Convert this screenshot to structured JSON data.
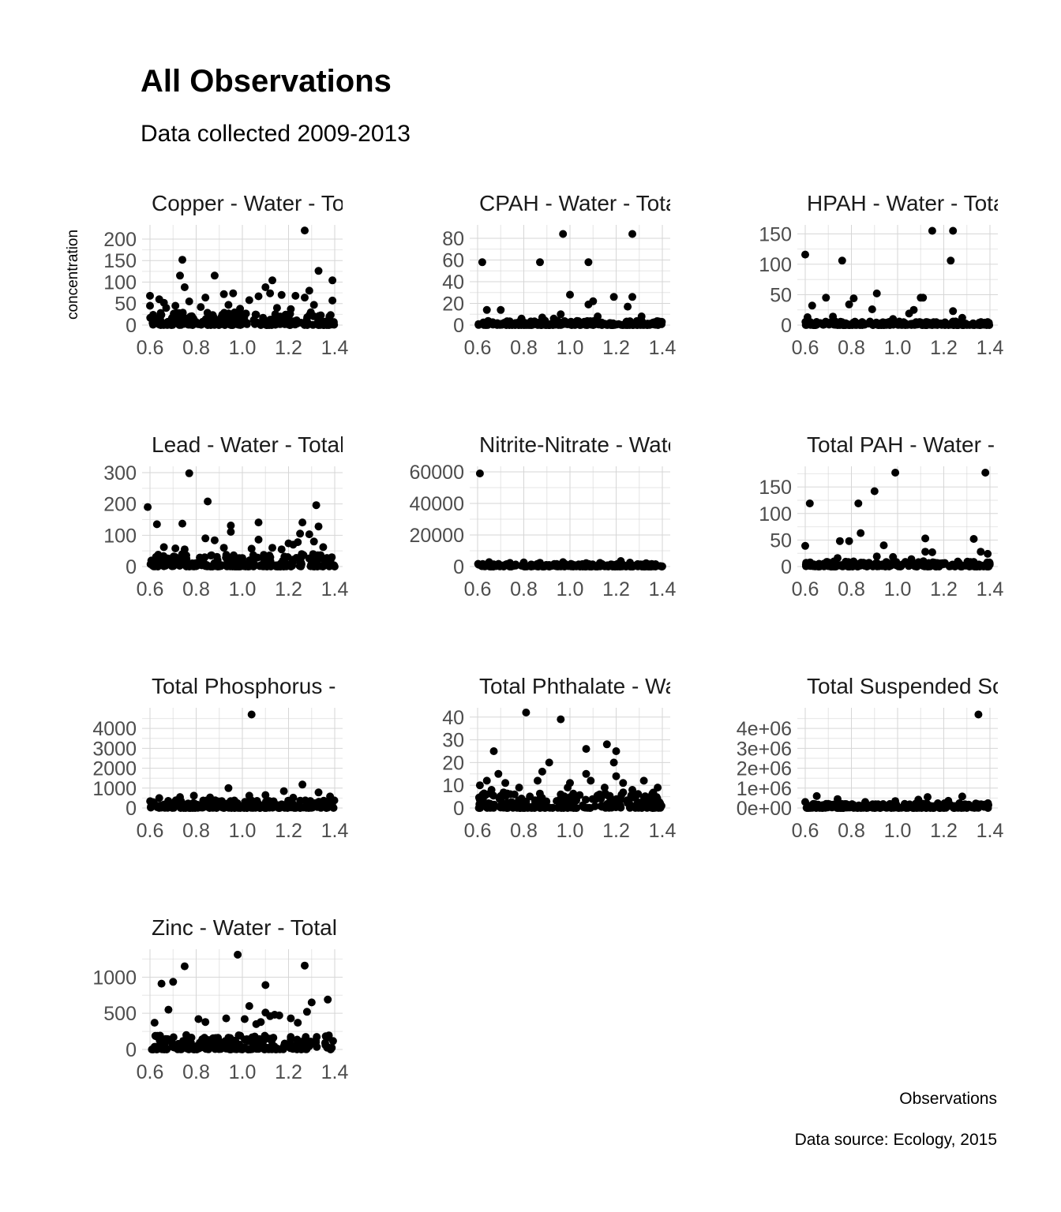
{
  "chart_data": {
    "type": "scatter",
    "title": "All Observations",
    "subtitle": "Data collected 2009-2013",
    "ylabel": "concentration",
    "xlabel": "Observations",
    "caption": "Data source: Ecology, 2015",
    "xlim": [
      0.6,
      1.4
    ],
    "x_ticks": [
      "0.6",
      "0.8",
      "1.0",
      "1.2",
      "1.4"
    ],
    "facets": [
      {
        "strip": "Copper - Water - Tot",
        "ylim": [
          0,
          222
        ],
        "y_ticks": [
          {
            "v": 0,
            "label": "0"
          },
          {
            "v": 50,
            "label": "50"
          },
          {
            "v": 100,
            "label": "100"
          },
          {
            "v": 150,
            "label": "150"
          },
          {
            "v": 200,
            "label": "200"
          }
        ],
        "noise_max": 30,
        "points": [
          [
            1.27,
            220
          ],
          [
            0.74,
            152
          ],
          [
            1.33,
            126
          ],
          [
            0.73,
            115
          ],
          [
            0.88,
            115
          ],
          [
            1.13,
            104
          ],
          [
            1.39,
            104
          ],
          [
            1.1,
            88
          ],
          [
            0.75,
            88
          ],
          [
            1.29,
            80
          ],
          [
            1.12,
            74
          ],
          [
            0.96,
            74
          ],
          [
            0.92,
            72
          ],
          [
            1.17,
            70
          ],
          [
            0.6,
            68
          ],
          [
            1.23,
            68
          ],
          [
            1.07,
            67
          ],
          [
            0.84,
            64
          ],
          [
            1.27,
            64
          ],
          [
            0.64,
            60
          ],
          [
            1.03,
            58
          ],
          [
            1.39,
            57
          ],
          [
            0.77,
            55
          ],
          [
            0.66,
            52
          ],
          [
            0.94,
            47
          ],
          [
            1.31,
            47
          ],
          [
            0.6,
            45
          ],
          [
            0.71,
            45
          ],
          [
            0.82,
            42
          ],
          [
            1.15,
            40
          ],
          [
            0.67,
            40
          ],
          [
            0.99,
            38
          ],
          [
            1.21,
            37
          ]
        ]
      },
      {
        "strip": "CPAH - Water - Tota",
        "ylim": [
          0,
          88
        ],
        "y_ticks": [
          {
            "v": 0,
            "label": "0"
          },
          {
            "v": 20,
            "label": "20"
          },
          {
            "v": 40,
            "label": "40"
          },
          {
            "v": 60,
            "label": "60"
          },
          {
            "v": 80,
            "label": "80"
          }
        ],
        "noise_max": 4,
        "points": [
          [
            0.97,
            84
          ],
          [
            1.27,
            84
          ],
          [
            0.62,
            58
          ],
          [
            0.87,
            58
          ],
          [
            1.08,
            58
          ],
          [
            1.0,
            28
          ],
          [
            1.27,
            26
          ],
          [
            1.19,
            26
          ],
          [
            1.1,
            22
          ],
          [
            1.08,
            19
          ],
          [
            1.25,
            17
          ],
          [
            0.64,
            14
          ],
          [
            0.7,
            14
          ],
          [
            0.96,
            10
          ],
          [
            1.12,
            8
          ],
          [
            1.31,
            8
          ],
          [
            0.88,
            7
          ],
          [
            0.79,
            6
          ],
          [
            0.93,
            6
          ]
        ]
      },
      {
        "strip": "HPAH - Water - Tota",
        "ylim": [
          0,
          157
        ],
        "y_ticks": [
          {
            "v": 0,
            "label": "0"
          },
          {
            "v": 50,
            "label": "50"
          },
          {
            "v": 100,
            "label": "100"
          },
          {
            "v": 150,
            "label": "150"
          }
        ],
        "noise_max": 6,
        "points": [
          [
            1.15,
            155
          ],
          [
            1.24,
            155
          ],
          [
            0.6,
            116
          ],
          [
            0.76,
            106
          ],
          [
            1.23,
            106
          ],
          [
            0.91,
            52
          ],
          [
            0.69,
            45
          ],
          [
            0.81,
            44
          ],
          [
            1.11,
            45
          ],
          [
            1.1,
            45
          ],
          [
            0.79,
            34
          ],
          [
            0.63,
            32
          ],
          [
            0.89,
            26
          ],
          [
            1.07,
            25
          ],
          [
            1.24,
            23
          ],
          [
            1.05,
            19
          ],
          [
            0.72,
            14
          ],
          [
            0.61,
            13
          ],
          [
            1.28,
            12
          ],
          [
            0.98,
            10
          ]
        ]
      },
      {
        "strip": "Lead - Water - Total",
        "ylim": [
          0,
          305
        ],
        "y_ticks": [
          {
            "v": 0,
            "label": "0"
          },
          {
            "v": 100,
            "label": "100"
          },
          {
            "v": 200,
            "label": "200"
          },
          {
            "v": 300,
            "label": "300"
          }
        ],
        "noise_max": 40,
        "points": [
          [
            0.77,
            298
          ],
          [
            0.85,
            208
          ],
          [
            1.32,
            196
          ],
          [
            0.59,
            190
          ],
          [
            1.26,
            141
          ],
          [
            0.63,
            135
          ],
          [
            0.74,
            137
          ],
          [
            1.07,
            141
          ],
          [
            0.95,
            131
          ],
          [
            1.33,
            128
          ],
          [
            0.95,
            111
          ],
          [
            1.25,
            105
          ],
          [
            1.29,
            103
          ],
          [
            0.84,
            90
          ],
          [
            1.07,
            86
          ],
          [
            0.88,
            84
          ],
          [
            1.31,
            80
          ],
          [
            1.2,
            74
          ],
          [
            1.24,
            78
          ],
          [
            1.22,
            70
          ],
          [
            0.66,
            62
          ],
          [
            1.35,
            62
          ],
          [
            0.92,
            60
          ],
          [
            1.04,
            57
          ],
          [
            1.13,
            60
          ],
          [
            0.71,
            58
          ],
          [
            0.75,
            55
          ],
          [
            1.17,
            55
          ]
        ]
      },
      {
        "strip": "Nitrite-Nitrate - Wate",
        "ylim": [
          0,
          60500
        ],
        "y_ticks": [
          {
            "v": 0,
            "label": "0"
          },
          {
            "v": 20000,
            "label": "20000"
          },
          {
            "v": 40000,
            "label": "40000"
          },
          {
            "v": 60000,
            "label": "60000"
          }
        ],
        "noise_max": 1800,
        "points": [
          [
            0.61,
            59000
          ],
          [
            1.22,
            3500
          ],
          [
            0.65,
            2800
          ],
          [
            0.97,
            2800
          ],
          [
            0.8,
            2600
          ],
          [
            1.26,
            2500
          ],
          [
            0.87,
            2400
          ],
          [
            1.13,
            2300
          ],
          [
            0.74,
            2300
          ],
          [
            1.07,
            2200
          ],
          [
            1.33,
            2100
          ]
        ]
      },
      {
        "strip": "Total PAH - Water -",
        "ylim": [
          0,
          180
        ],
        "y_ticks": [
          {
            "v": 0,
            "label": "0"
          },
          {
            "v": 50,
            "label": "50"
          },
          {
            "v": 100,
            "label": "100"
          },
          {
            "v": 150,
            "label": "150"
          }
        ],
        "noise_max": 10,
        "points": [
          [
            0.99,
            177
          ],
          [
            1.38,
            177
          ],
          [
            0.9,
            142
          ],
          [
            0.62,
            119
          ],
          [
            0.83,
            119
          ],
          [
            0.84,
            63
          ],
          [
            1.12,
            53
          ],
          [
            1.33,
            52
          ],
          [
            0.75,
            48
          ],
          [
            0.79,
            48
          ],
          [
            0.6,
            39
          ],
          [
            0.94,
            40
          ],
          [
            1.36,
            28
          ],
          [
            1.15,
            27
          ],
          [
            1.39,
            24
          ],
          [
            1.12,
            28
          ],
          [
            0.98,
            18
          ],
          [
            0.74,
            16
          ],
          [
            0.91,
            19
          ],
          [
            1.06,
            14
          ]
        ]
      },
      {
        "strip": "Total Phosphorus -",
        "ylim": [
          0,
          4800
        ],
        "y_ticks": [
          {
            "v": 0,
            "label": "0"
          },
          {
            "v": 1000,
            "label": "1000"
          },
          {
            "v": 2000,
            "label": "2000"
          },
          {
            "v": 3000,
            "label": "3000"
          },
          {
            "v": 4000,
            "label": "4000"
          }
        ],
        "noise_max": 400,
        "points": [
          [
            1.04,
            4700
          ],
          [
            1.26,
            1180
          ],
          [
            0.94,
            1000
          ],
          [
            1.18,
            850
          ],
          [
            1.33,
            780
          ],
          [
            1.1,
            650
          ],
          [
            0.79,
            620
          ],
          [
            1.03,
            620
          ],
          [
            1.38,
            580
          ],
          [
            0.73,
            550
          ],
          [
            0.86,
            530
          ],
          [
            0.64,
            500
          ],
          [
            1.22,
            520
          ]
        ]
      },
      {
        "strip": "Total Phthalate - Wa",
        "ylim": [
          0,
          42
        ],
        "y_ticks": [
          {
            "v": 0,
            "label": "0"
          },
          {
            "v": 10,
            "label": "10"
          },
          {
            "v": 20,
            "label": "20"
          },
          {
            "v": 30,
            "label": "30"
          },
          {
            "v": 40,
            "label": "40"
          }
        ],
        "noise_max": 7,
        "points": [
          [
            0.81,
            42
          ],
          [
            0.96,
            39
          ],
          [
            1.16,
            28
          ],
          [
            1.07,
            26
          ],
          [
            1.2,
            25
          ],
          [
            0.67,
            25
          ],
          [
            0.91,
            20
          ],
          [
            1.19,
            20
          ],
          [
            0.88,
            16
          ],
          [
            0.69,
            15
          ],
          [
            1.07,
            15
          ],
          [
            1.2,
            14
          ],
          [
            1.32,
            12
          ],
          [
            0.86,
            12
          ],
          [
            0.64,
            12
          ],
          [
            1.0,
            11
          ],
          [
            0.72,
            11
          ],
          [
            1.09,
            12
          ],
          [
            1.23,
            11
          ],
          [
            0.61,
            10
          ],
          [
            0.78,
            9
          ],
          [
            1.27,
            8
          ],
          [
            1.38,
            9
          ],
          [
            0.66,
            8
          ],
          [
            1.15,
            9
          ],
          [
            0.99,
            9
          ]
        ]
      },
      {
        "strip": "Total Suspended Sc",
        "ylim": [
          0,
          4800000
        ],
        "y_ticks": [
          {
            "v": 0,
            "label": "0e+00"
          },
          {
            "v": 1000000,
            "label": "1e+06"
          },
          {
            "v": 2000000,
            "label": "2e+06"
          },
          {
            "v": 3000000,
            "label": "3e+06"
          },
          {
            "v": 4000000,
            "label": "4e+06"
          }
        ],
        "noise_max": 250000,
        "points": [
          [
            1.35,
            4700000
          ],
          [
            0.65,
            600000
          ],
          [
            1.28,
            580000
          ],
          [
            1.13,
            550000
          ],
          [
            0.74,
            450000
          ],
          [
            1.09,
            420000
          ],
          [
            0.99,
            350000
          ],
          [
            1.22,
            360000
          ],
          [
            0.86,
            300000
          ],
          [
            0.6,
            300000
          ]
        ]
      },
      {
        "strip": "Zinc - Water - Total",
        "ylim": [
          0,
          1320
        ],
        "y_ticks": [
          {
            "v": 0,
            "label": "0"
          },
          {
            "v": 500,
            "label": "500"
          },
          {
            "v": 1000,
            "label": "1000"
          }
        ],
        "noise_max": 200,
        "points": [
          [
            0.98,
            1310
          ],
          [
            0.75,
            1150
          ],
          [
            1.27,
            1160
          ],
          [
            0.7,
            935
          ],
          [
            0.65,
            910
          ],
          [
            1.1,
            890
          ],
          [
            1.37,
            690
          ],
          [
            1.3,
            650
          ],
          [
            1.03,
            600
          ],
          [
            0.68,
            550
          ],
          [
            1.28,
            520
          ],
          [
            1.1,
            510
          ],
          [
            1.14,
            480
          ],
          [
            1.16,
            470
          ],
          [
            1.12,
            460
          ],
          [
            0.93,
            430
          ],
          [
            1.21,
            430
          ],
          [
            0.81,
            420
          ],
          [
            1.01,
            420
          ],
          [
            0.84,
            380
          ],
          [
            1.08,
            380
          ],
          [
            1.24,
            370
          ],
          [
            0.62,
            370
          ],
          [
            1.06,
            350
          ]
        ]
      }
    ]
  }
}
